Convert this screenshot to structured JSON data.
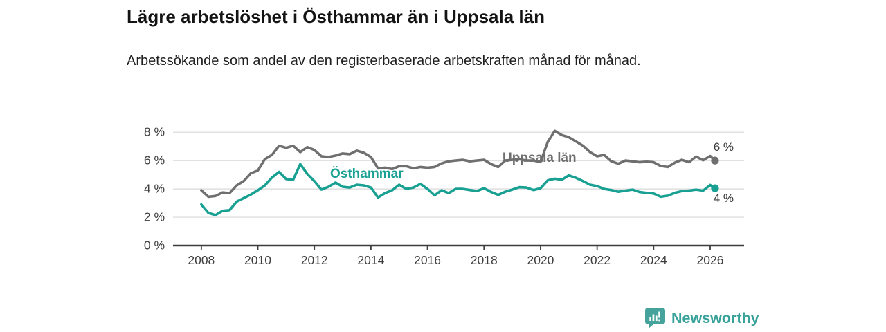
{
  "title": "Lägre arbetslöshet i Östhammar än i Uppsala län",
  "subtitle": "Arbetssökande som andel av den registerbaserade arbetskraften månad för månad.",
  "brand": {
    "name": "Newsworthy",
    "color": "#38a29a",
    "icon": "bar-chart-speech-bubble-icon"
  },
  "chart_data": {
    "type": "line",
    "title": "",
    "xlabel": "",
    "ylabel": "",
    "grid": "horizontal",
    "ylim": [
      0,
      8
    ],
    "xlim_years": [
      2007.0,
      2027.2
    ],
    "y_ticks": [
      {
        "value": 0,
        "label": "0 %"
      },
      {
        "value": 2,
        "label": "2 %"
      },
      {
        "value": 4,
        "label": "4 %"
      },
      {
        "value": 6,
        "label": "6 %"
      },
      {
        "value": 8,
        "label": "8 %"
      }
    ],
    "x_ticks": [
      {
        "value": 2008,
        "label": "2008"
      },
      {
        "value": 2010,
        "label": "2010"
      },
      {
        "value": 2012,
        "label": "2012"
      },
      {
        "value": 2014,
        "label": "2014"
      },
      {
        "value": 2016,
        "label": "2016"
      },
      {
        "value": 2018,
        "label": "2018"
      },
      {
        "value": 2020,
        "label": "2020"
      },
      {
        "value": 2022,
        "label": "2022"
      },
      {
        "value": 2024,
        "label": "2024"
      },
      {
        "value": 2026,
        "label": "2026"
      }
    ],
    "x": [
      2008,
      2008.25,
      2008.5,
      2008.75,
      2009,
      2009.25,
      2009.5,
      2009.75,
      2010,
      2010.25,
      2010.5,
      2010.75,
      2011,
      2011.25,
      2011.5,
      2011.75,
      2012,
      2012.25,
      2012.5,
      2012.75,
      2013,
      2013.25,
      2013.5,
      2013.75,
      2014,
      2014.25,
      2014.5,
      2014.75,
      2015,
      2015.25,
      2015.5,
      2015.75,
      2016,
      2016.25,
      2016.5,
      2016.75,
      2017,
      2017.25,
      2017.5,
      2017.75,
      2018,
      2018.25,
      2018.5,
      2018.75,
      2019,
      2019.25,
      2019.5,
      2019.75,
      2020,
      2020.25,
      2020.5,
      2020.75,
      2021,
      2021.25,
      2021.5,
      2021.75,
      2022,
      2022.25,
      2022.5,
      2022.75,
      2023,
      2023.25,
      2023.5,
      2023.75,
      2024,
      2024.25,
      2024.5,
      2024.75,
      2025,
      2025.25,
      2025.5,
      2025.75,
      2026,
      2026.17
    ],
    "series": [
      {
        "name": "Uppsala län",
        "color": "#6f6f6f",
        "end_label": "6 %",
        "values": [
          3.9,
          3.45,
          3.5,
          3.75,
          3.7,
          4.25,
          4.55,
          5.1,
          5.3,
          6.1,
          6.4,
          7.05,
          6.9,
          7.05,
          6.6,
          6.95,
          6.75,
          6.3,
          6.25,
          6.35,
          6.5,
          6.45,
          6.7,
          6.55,
          6.25,
          5.45,
          5.5,
          5.4,
          5.6,
          5.6,
          5.45,
          5.55,
          5.5,
          5.55,
          5.8,
          5.95,
          6.0,
          6.05,
          5.95,
          6.0,
          6.05,
          5.75,
          5.55,
          6.0,
          6.05,
          6.1,
          6.0,
          6.0,
          5.9,
          7.3,
          8.1,
          7.8,
          7.65,
          7.35,
          7.05,
          6.6,
          6.3,
          6.4,
          5.95,
          5.78,
          6.0,
          5.95,
          5.88,
          5.92,
          5.88,
          5.62,
          5.55,
          5.85,
          6.05,
          5.88,
          6.28,
          6.02,
          6.32,
          6.0
        ]
      },
      {
        "name": "Östhammar",
        "color": "#18a092",
        "end_label": "4 %",
        "values": [
          2.9,
          2.3,
          2.15,
          2.45,
          2.5,
          3.1,
          3.35,
          3.6,
          3.9,
          4.25,
          4.8,
          5.2,
          4.7,
          4.65,
          5.75,
          5.05,
          4.55,
          3.95,
          4.15,
          4.45,
          4.15,
          4.1,
          4.3,
          4.25,
          4.1,
          3.4,
          3.7,
          3.9,
          4.3,
          4.0,
          4.1,
          4.35,
          4.0,
          3.55,
          3.9,
          3.7,
          4.0,
          4.0,
          3.92,
          3.85,
          4.05,
          3.78,
          3.58,
          3.8,
          3.95,
          4.12,
          4.1,
          3.92,
          4.05,
          4.6,
          4.72,
          4.65,
          4.95,
          4.78,
          4.55,
          4.3,
          4.2,
          4.0,
          3.92,
          3.8,
          3.88,
          3.95,
          3.78,
          3.72,
          3.68,
          3.45,
          3.52,
          3.72,
          3.85,
          3.88,
          3.95,
          3.88,
          4.28,
          4.05
        ]
      }
    ],
    "legend_position": "inline-labels",
    "colors": {
      "grid": "#d8d8d8",
      "axis": "#3d3d3d",
      "tick_text": "#3d3d3d"
    }
  }
}
